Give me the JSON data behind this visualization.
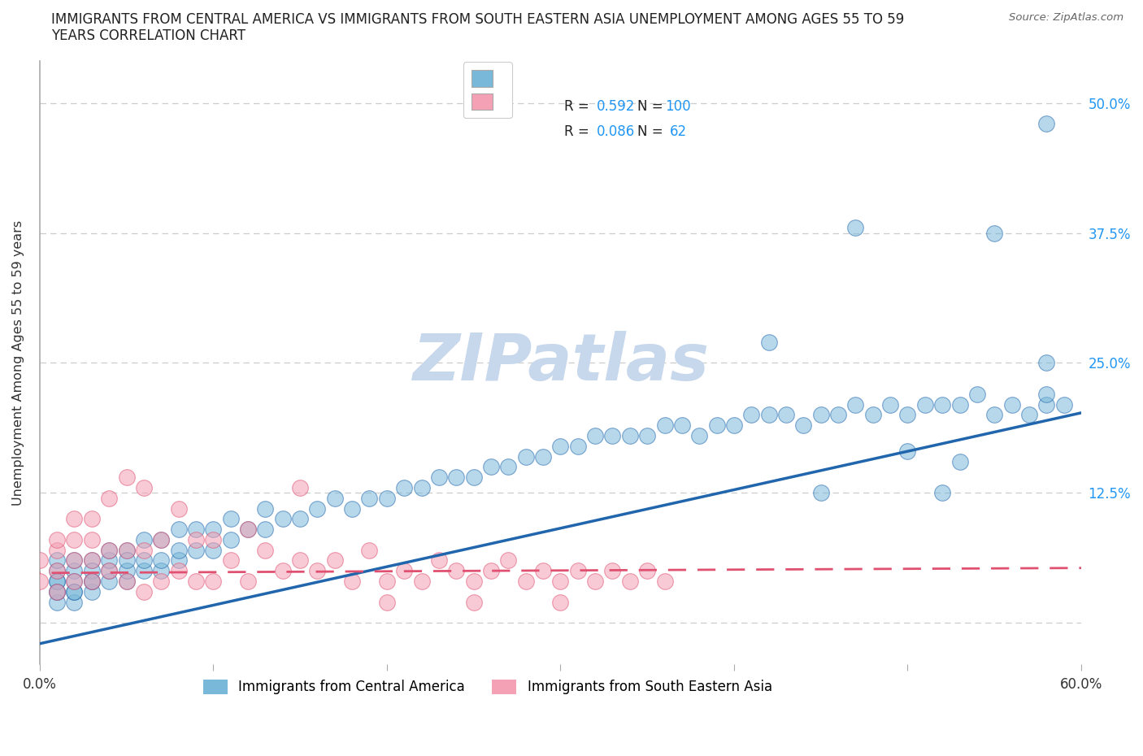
{
  "title_line1": "IMMIGRANTS FROM CENTRAL AMERICA VS IMMIGRANTS FROM SOUTH EASTERN ASIA UNEMPLOYMENT AMONG AGES 55 TO 59",
  "title_line2": "YEARS CORRELATION CHART",
  "source_text": "Source: ZipAtlas.com",
  "ylabel": "Unemployment Among Ages 55 to 59 years",
  "xlim": [
    0.0,
    0.6
  ],
  "ylim": [
    -0.04,
    0.54
  ],
  "xtick_positions": [
    0.0,
    0.1,
    0.2,
    0.3,
    0.4,
    0.5,
    0.6
  ],
  "xticklabels": [
    "0.0%",
    "",
    "",
    "",
    "",
    "",
    "60.0%"
  ],
  "ytick_positions": [
    0.0,
    0.125,
    0.25,
    0.375,
    0.5
  ],
  "yticklabels_right": [
    "",
    "12.5%",
    "25.0%",
    "37.5%",
    "50.0%"
  ],
  "grid_color": "#cccccc",
  "background_color": "#ffffff",
  "blue_color": "#7ab8d9",
  "pink_color": "#f4a0b5",
  "blue_line_color": "#2166ac",
  "pink_line_color": "#e05070",
  "blue_R": "0.592",
  "blue_N": "100",
  "pink_R": "0.086",
  "pink_N": "62",
  "blue_line_slope": 0.37,
  "blue_line_intercept": -0.02,
  "pink_line_slope": 0.008,
  "pink_line_intercept": 0.048,
  "legend_blue_label": "Immigrants from Central America",
  "legend_pink_label": "Immigrants from South Eastern Asia",
  "stat_color": "#2196f3",
  "watermark": "ZIPatlas",
  "watermark_color": "#c8d8ec",
  "blue_x": [
    0.01,
    0.01,
    0.01,
    0.01,
    0.01,
    0.01,
    0.01,
    0.02,
    0.02,
    0.02,
    0.02,
    0.02,
    0.02,
    0.03,
    0.03,
    0.03,
    0.03,
    0.03,
    0.04,
    0.04,
    0.04,
    0.04,
    0.05,
    0.05,
    0.05,
    0.05,
    0.06,
    0.06,
    0.06,
    0.07,
    0.07,
    0.07,
    0.08,
    0.08,
    0.08,
    0.09,
    0.09,
    0.1,
    0.1,
    0.11,
    0.11,
    0.12,
    0.13,
    0.13,
    0.14,
    0.15,
    0.16,
    0.17,
    0.18,
    0.19,
    0.2,
    0.21,
    0.22,
    0.23,
    0.24,
    0.25,
    0.26,
    0.27,
    0.28,
    0.29,
    0.3,
    0.31,
    0.32,
    0.33,
    0.34,
    0.35,
    0.36,
    0.37,
    0.38,
    0.39,
    0.4,
    0.41,
    0.42,
    0.43,
    0.44,
    0.45,
    0.46,
    0.47,
    0.48,
    0.49,
    0.5,
    0.51,
    0.52,
    0.53,
    0.54,
    0.55,
    0.56,
    0.57,
    0.58,
    0.58,
    0.59,
    0.42,
    0.47,
    0.55,
    0.58,
    0.58,
    0.45,
    0.52,
    0.5,
    0.53
  ],
  "blue_y": [
    0.02,
    0.03,
    0.04,
    0.05,
    0.06,
    0.04,
    0.03,
    0.02,
    0.03,
    0.05,
    0.04,
    0.06,
    0.03,
    0.03,
    0.04,
    0.06,
    0.05,
    0.04,
    0.04,
    0.05,
    0.06,
    0.07,
    0.04,
    0.05,
    0.07,
    0.06,
    0.05,
    0.06,
    0.08,
    0.05,
    0.06,
    0.08,
    0.06,
    0.07,
    0.09,
    0.07,
    0.09,
    0.07,
    0.09,
    0.08,
    0.1,
    0.09,
    0.09,
    0.11,
    0.1,
    0.1,
    0.11,
    0.12,
    0.11,
    0.12,
    0.12,
    0.13,
    0.13,
    0.14,
    0.14,
    0.14,
    0.15,
    0.15,
    0.16,
    0.16,
    0.17,
    0.17,
    0.18,
    0.18,
    0.18,
    0.18,
    0.19,
    0.19,
    0.18,
    0.19,
    0.19,
    0.2,
    0.2,
    0.2,
    0.19,
    0.2,
    0.2,
    0.21,
    0.2,
    0.21,
    0.2,
    0.21,
    0.21,
    0.21,
    0.22,
    0.2,
    0.21,
    0.2,
    0.21,
    0.22,
    0.21,
    0.27,
    0.38,
    0.375,
    0.48,
    0.25,
    0.125,
    0.125,
    0.165,
    0.155
  ],
  "pink_x": [
    0.0,
    0.0,
    0.01,
    0.01,
    0.01,
    0.01,
    0.02,
    0.02,
    0.02,
    0.02,
    0.03,
    0.03,
    0.03,
    0.03,
    0.04,
    0.04,
    0.04,
    0.05,
    0.05,
    0.05,
    0.06,
    0.06,
    0.06,
    0.07,
    0.07,
    0.08,
    0.08,
    0.09,
    0.09,
    0.1,
    0.1,
    0.11,
    0.12,
    0.12,
    0.13,
    0.14,
    0.15,
    0.15,
    0.16,
    0.17,
    0.18,
    0.19,
    0.2,
    0.21,
    0.22,
    0.23,
    0.24,
    0.25,
    0.26,
    0.27,
    0.28,
    0.29,
    0.3,
    0.31,
    0.32,
    0.33,
    0.34,
    0.35,
    0.36,
    0.3,
    0.25,
    0.2
  ],
  "pink_y": [
    0.04,
    0.06,
    0.03,
    0.05,
    0.07,
    0.08,
    0.04,
    0.06,
    0.08,
    0.1,
    0.04,
    0.06,
    0.08,
    0.1,
    0.05,
    0.07,
    0.12,
    0.04,
    0.07,
    0.14,
    0.03,
    0.07,
    0.13,
    0.04,
    0.08,
    0.05,
    0.11,
    0.04,
    0.08,
    0.04,
    0.08,
    0.06,
    0.04,
    0.09,
    0.07,
    0.05,
    0.06,
    0.13,
    0.05,
    0.06,
    0.04,
    0.07,
    0.04,
    0.05,
    0.04,
    0.06,
    0.05,
    0.04,
    0.05,
    0.06,
    0.04,
    0.05,
    0.04,
    0.05,
    0.04,
    0.05,
    0.04,
    0.05,
    0.04,
    0.02,
    0.02,
    0.02
  ]
}
